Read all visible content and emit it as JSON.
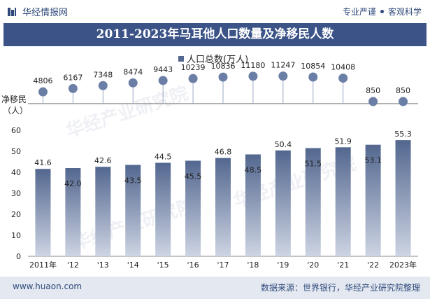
{
  "header": {
    "brand": "华经情报网",
    "slogan_left": "专业严谨",
    "slogan_right": "客观科学"
  },
  "footer": {
    "url": "www.huaon.com",
    "source": "数据来源：世界银行，华经产业研究院整理"
  },
  "watermark": "华经产业研究院",
  "colors": {
    "accent": "#3b5386",
    "bar_top": "#53678f",
    "bar_bottom": "#c9d1e1",
    "dot": "#6b7fa6"
  },
  "chart_data": {
    "title": "2011-2023年马耳他人口数量及净移民人数",
    "type": "bar",
    "categories": [
      "2011年",
      "'12",
      "'13",
      "'14",
      "'15",
      "'16",
      "'17",
      "'18",
      "'19",
      "'20",
      "'21",
      "'22",
      "2023年"
    ],
    "series": [
      {
        "name": "人口总数(万人)",
        "type": "bar",
        "values": [
          41.6,
          42.0,
          42.6,
          43.5,
          44.5,
          45.5,
          46.8,
          48.5,
          50.4,
          51.5,
          51.9,
          53.1,
          55.3
        ]
      },
      {
        "name": "净移民（人）",
        "type": "dot",
        "values": [
          4806,
          6167,
          7348,
          8474,
          9443,
          10239,
          10836,
          11180,
          11247,
          10854,
          10408,
          850,
          850
        ]
      }
    ],
    "ylim": [
      0,
      60
    ],
    "yticks": [
      0,
      10,
      20,
      30,
      40,
      50,
      60
    ],
    "migration_label_line1": "净移民",
    "migration_label_line2": "（人）",
    "legend_placement": "top-center",
    "grid": false
  }
}
